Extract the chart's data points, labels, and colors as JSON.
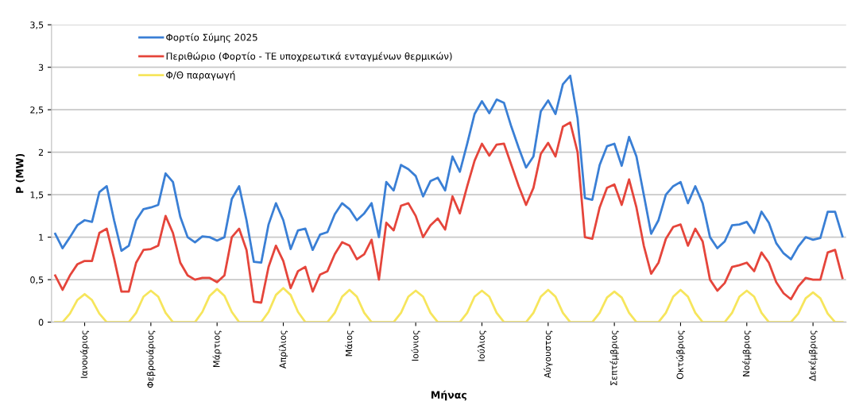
{
  "chart_data": {
    "type": "line",
    "xlabel": "Μήνας",
    "ylabel": "P (MW)",
    "categories": [
      null,
      null,
      null,
      null,
      "Ιανουάριος",
      null,
      null,
      null,
      null,
      null,
      null,
      null,
      null,
      "Φεβρουάριος",
      null,
      null,
      null,
      null,
      null,
      null,
      null,
      null,
      "Μάρτιος",
      null,
      null,
      null,
      null,
      null,
      null,
      null,
      null,
      "Απρίλιος",
      null,
      null,
      null,
      null,
      null,
      null,
      null,
      null,
      "Μάιος",
      null,
      null,
      null,
      null,
      null,
      null,
      null,
      null,
      "Ιούνιος",
      null,
      null,
      null,
      null,
      null,
      null,
      null,
      null,
      "Ιούλιος",
      null,
      null,
      null,
      null,
      null,
      null,
      null,
      null,
      "Αύγουστος",
      null,
      null,
      null,
      null,
      null,
      null,
      null,
      null,
      "Σεπτέμβριος",
      null,
      null,
      null,
      null,
      null,
      null,
      null,
      null,
      "Οκτώβριος",
      null,
      null,
      null,
      null,
      null,
      null,
      null,
      null,
      "Νοέμβριος",
      null,
      null,
      null,
      null,
      null,
      null,
      null,
      null,
      "Δεκέμβριος",
      null,
      null,
      null,
      null
    ],
    "ylim": [
      0,
      3.5
    ],
    "yticks": [
      0,
      {
        "value": 0.5,
        "label": "0,5"
      },
      1,
      {
        "value": 1.5,
        "label": "1,5"
      },
      2,
      {
        "value": 2.5,
        "label": "2,5"
      },
      3,
      {
        "value": 3.5,
        "label": "3,5"
      }
    ],
    "grid": "y",
    "legend": "top left",
    "marker": "none",
    "line_style": "solid",
    "series": [
      {
        "name": "Φορτίο Σύμης 2025",
        "color": "#3a7fd5",
        "values": [
          1.04,
          0.87,
          1.0,
          1.14,
          1.2,
          1.18,
          1.53,
          1.6,
          1.2,
          0.84,
          0.9,
          1.2,
          1.33,
          1.35,
          1.38,
          1.75,
          1.65,
          1.24,
          1.0,
          0.94,
          1.01,
          1.0,
          0.96,
          1.0,
          1.45,
          1.6,
          1.2,
          0.71,
          0.7,
          1.15,
          1.4,
          1.2,
          0.86,
          1.08,
          1.1,
          0.85,
          1.03,
          1.06,
          1.27,
          1.4,
          1.33,
          1.2,
          1.28,
          1.4,
          1.0,
          1.65,
          1.55,
          1.85,
          1.8,
          1.72,
          1.48,
          1.66,
          1.7,
          1.55,
          1.95,
          1.77,
          2.1,
          2.45,
          2.6,
          2.46,
          2.62,
          2.58,
          2.3,
          2.05,
          1.82,
          1.95,
          2.48,
          2.61,
          2.45,
          2.8,
          2.9,
          2.4,
          1.46,
          1.44,
          1.85,
          2.07,
          2.1,
          1.84,
          2.18,
          1.95,
          1.5,
          1.04,
          1.2,
          1.5,
          1.6,
          1.65,
          1.4,
          1.6,
          1.4,
          1.0,
          0.87,
          0.95,
          1.14,
          1.15,
          1.18,
          1.05,
          1.3,
          1.17,
          0.93,
          0.81,
          0.74,
          0.89,
          1.0,
          0.97,
          0.99,
          1.3,
          1.3,
          1.01
        ]
      },
      {
        "name": "Περιθώριο (Φορτίο - ΤΕ υποχρεωτικά ενταγμένων θερμικών)",
        "color": "#e5453b",
        "values": [
          0.55,
          0.38,
          0.55,
          0.68,
          0.72,
          0.72,
          1.05,
          1.1,
          0.75,
          0.36,
          0.36,
          0.7,
          0.85,
          0.86,
          0.9,
          1.25,
          1.05,
          0.7,
          0.55,
          0.5,
          0.52,
          0.52,
          0.47,
          0.55,
          1.0,
          1.1,
          0.85,
          0.24,
          0.23,
          0.65,
          0.9,
          0.72,
          0.4,
          0.6,
          0.65,
          0.36,
          0.56,
          0.6,
          0.8,
          0.94,
          0.9,
          0.74,
          0.8,
          0.97,
          0.5,
          1.17,
          1.08,
          1.37,
          1.4,
          1.25,
          1.0,
          1.14,
          1.22,
          1.09,
          1.48,
          1.28,
          1.6,
          1.9,
          2.1,
          1.96,
          2.09,
          2.1,
          1.85,
          1.6,
          1.38,
          1.58,
          1.98,
          2.11,
          1.95,
          2.3,
          2.35,
          2.0,
          1.0,
          0.98,
          1.35,
          1.58,
          1.62,
          1.38,
          1.68,
          1.35,
          0.9,
          0.57,
          0.7,
          0.98,
          1.12,
          1.15,
          0.9,
          1.1,
          0.95,
          0.5,
          0.37,
          0.46,
          0.65,
          0.67,
          0.7,
          0.6,
          0.82,
          0.7,
          0.47,
          0.34,
          0.27,
          0.42,
          0.52,
          0.5,
          0.5,
          0.82,
          0.85,
          0.52
        ]
      },
      {
        "name": "Φ/Θ παραγωγή",
        "color": "#f6e55c",
        "values": [
          0,
          0,
          0.1,
          0.26,
          0.33,
          0.26,
          0.1,
          0,
          0,
          0,
          0,
          0.11,
          0.3,
          0.37,
          0.3,
          0.11,
          0,
          0,
          0,
          0,
          0.12,
          0.31,
          0.39,
          0.31,
          0.12,
          0,
          0,
          0,
          0,
          0.12,
          0.32,
          0.4,
          0.32,
          0.12,
          0,
          0,
          0,
          0,
          0.11,
          0.3,
          0.38,
          0.3,
          0.11,
          0,
          0,
          0,
          0,
          0.11,
          0.3,
          0.37,
          0.3,
          0.11,
          0,
          0,
          0,
          0,
          0.11,
          0.3,
          0.37,
          0.3,
          0.11,
          0,
          0,
          0,
          0,
          0.11,
          0.3,
          0.38,
          0.3,
          0.11,
          0,
          0,
          0,
          0,
          0.11,
          0.29,
          0.36,
          0.29,
          0.11,
          0,
          0,
          0,
          0,
          0.11,
          0.3,
          0.38,
          0.3,
          0.11,
          0,
          0,
          0,
          0,
          0.11,
          0.3,
          0.37,
          0.3,
          0.11,
          0,
          0,
          0,
          0,
          0.1,
          0.28,
          0.35,
          0.28,
          0.1,
          0,
          0
        ]
      }
    ]
  }
}
